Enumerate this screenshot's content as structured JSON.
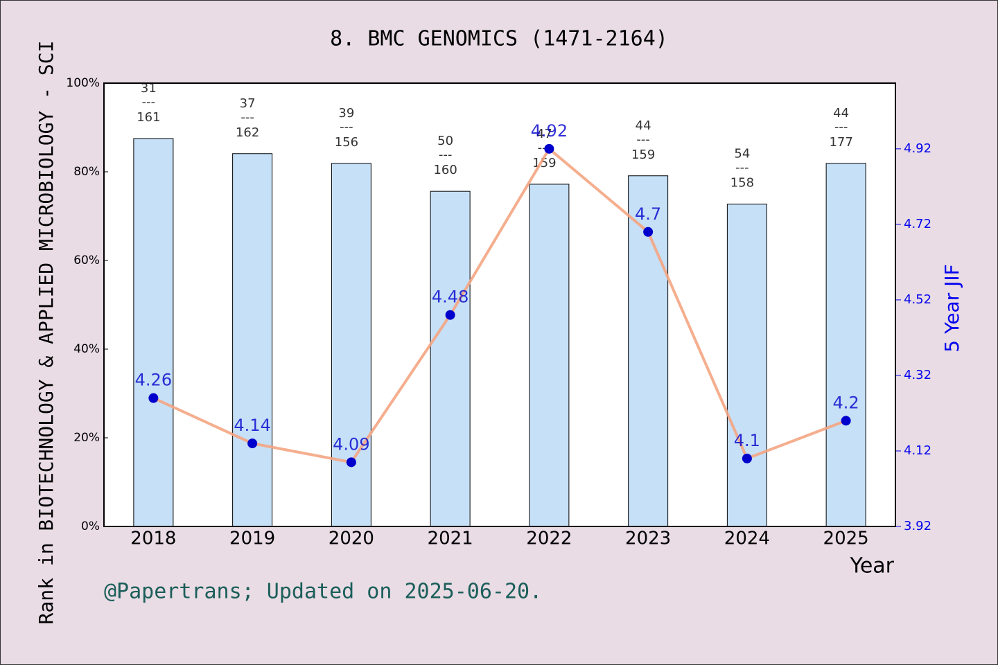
{
  "chart_data": {
    "type": "bar",
    "title": "8. BMC GENOMICS (1471-2164)",
    "x_label": "Year",
    "y_label": "Rank in BIOTECHNOLOGY & APPLIED MICROBIOLOGY - SCI",
    "y2_label": "5 Year JIF",
    "footer": "@Papertrans; Updated on 2025-06-20.",
    "categories": [
      "2018",
      "2019",
      "2020",
      "2021",
      "2022",
      "2023",
      "2024",
      "2025"
    ],
    "ylim": [
      0,
      100
    ],
    "yticks": [
      {
        "value": 0,
        "label": "0%"
      },
      {
        "value": 20,
        "label": "20%"
      },
      {
        "value": 40,
        "label": "40%"
      },
      {
        "value": 60,
        "label": "60%"
      },
      {
        "value": 80,
        "label": "80%"
      },
      {
        "value": 100,
        "label": "100%"
      }
    ],
    "y2lim": [
      3.92,
      5.094
    ],
    "y2ticks": [
      3.92,
      4.12,
      4.32,
      4.52,
      4.72,
      4.92
    ],
    "rank_separator": "---",
    "series": [
      {
        "type": "bar",
        "color": "#c6e0f7",
        "values": [
          87.5,
          84.1,
          81.9,
          75.6,
          77.2,
          79.1,
          72.7,
          81.9
        ],
        "ranks": [
          31,
          37,
          39,
          50,
          47,
          44,
          54,
          44
        ],
        "totals": [
          161,
          162,
          156,
          160,
          159,
          159,
          158,
          177
        ]
      },
      {
        "type": "line",
        "axis": "y2",
        "color": "#f4a582",
        "marker_color": "#0000cc",
        "values": [
          4.26,
          4.14,
          4.09,
          4.48,
          4.92,
          4.7,
          4.1,
          4.2
        ]
      }
    ]
  }
}
